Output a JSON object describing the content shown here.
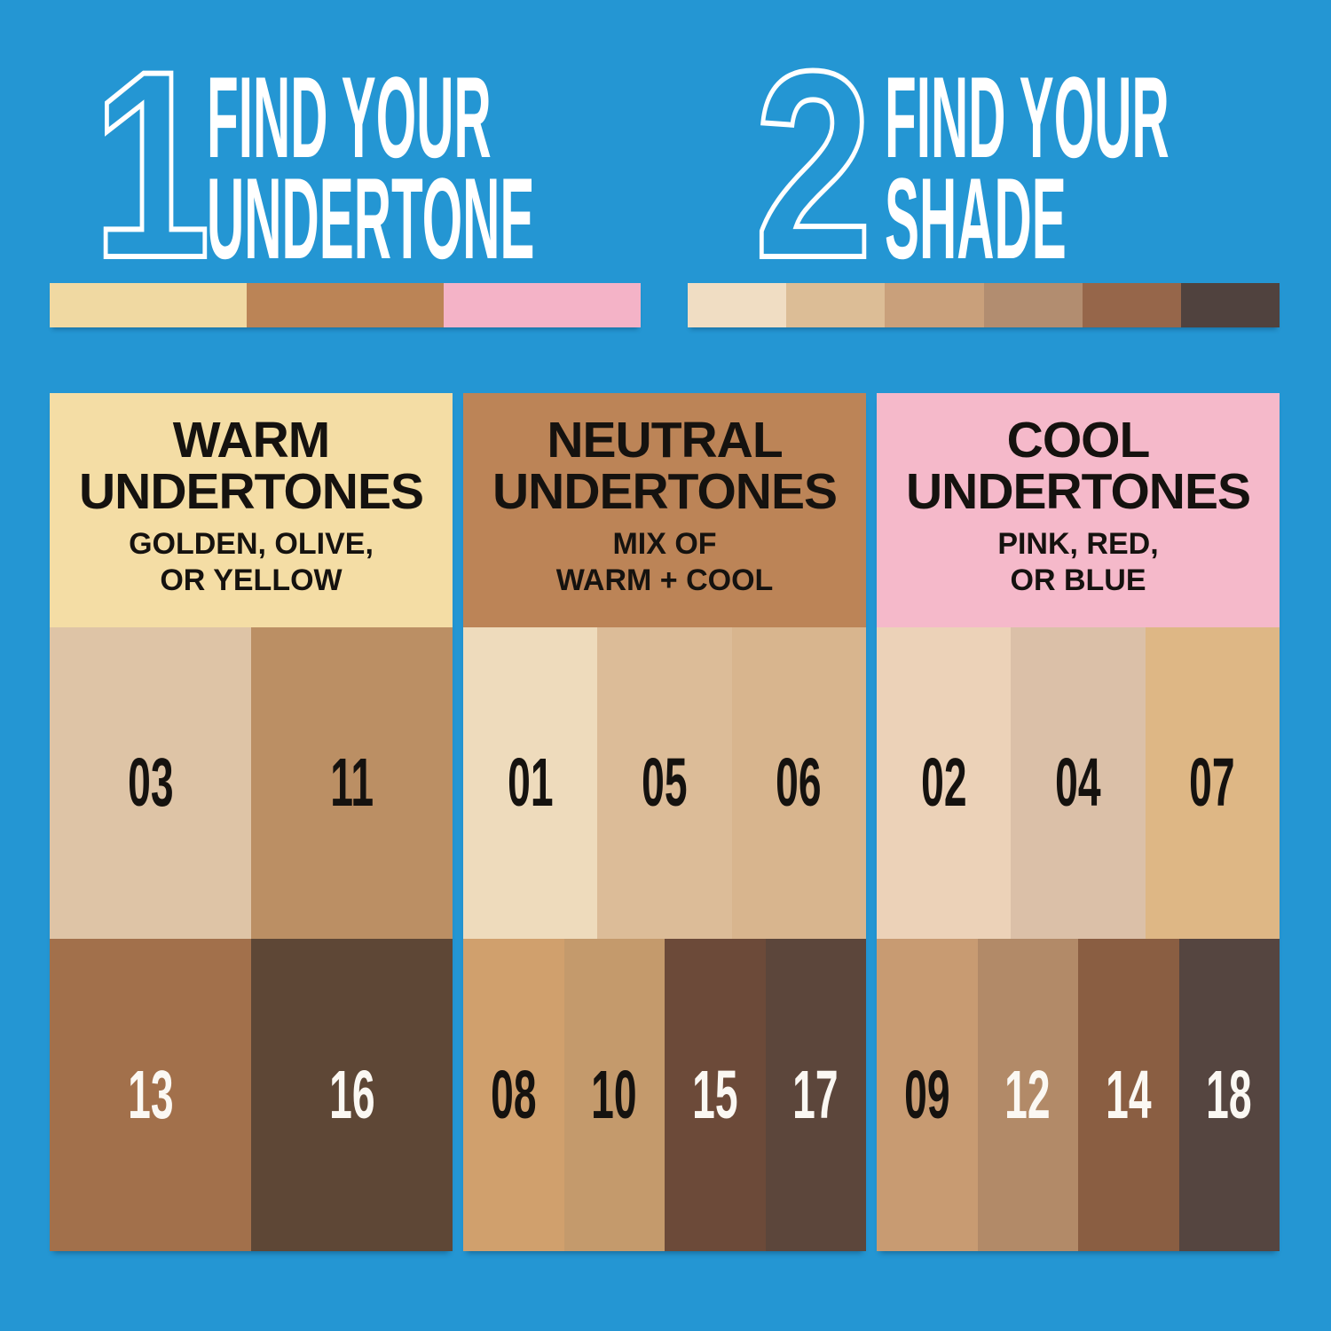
{
  "page": {
    "background": "#2496d3"
  },
  "steps": [
    {
      "number": "1",
      "title_line1": "FIND YOUR",
      "title_line2": "UNDERTONE",
      "strip": [
        "#f0d9a2",
        "#bb8456",
        "#f4b3c7"
      ]
    },
    {
      "number": "2",
      "title_line1": "FIND YOUR",
      "title_line2": "SHADE",
      "strip": [
        "#f0ddc3",
        "#dcbd96",
        "#c9a07b",
        "#b28d70",
        "#96664a",
        "#50423e"
      ]
    }
  ],
  "columns": [
    {
      "header": {
        "bg": "#f4dda5",
        "title_line1": "WARM",
        "title_line2": "UNDERTONES",
        "subtitle_line1": "GOLDEN, OLIVE,",
        "subtitle_line2": "OR YELLOW"
      },
      "light_row": [
        {
          "label": "03",
          "bg": "#dec4a6",
          "label_color": "#15120f"
        },
        {
          "label": "11",
          "bg": "#bb8f64",
          "label_color": "#15120f"
        }
      ],
      "dark_row": [
        {
          "label": "13",
          "bg": "#a2704b",
          "label_color": "#fbf8f3"
        },
        {
          "label": "16",
          "bg": "#5e4736",
          "label_color": "#fbf8f3"
        }
      ]
    },
    {
      "header": {
        "bg": "#bc8457",
        "title_line1": "NEUTRAL",
        "title_line2": "UNDERTONES",
        "subtitle_line1": "MIX OF",
        "subtitle_line2": "WARM + COOL"
      },
      "light_row": [
        {
          "label": "01",
          "bg": "#eedbbc",
          "label_color": "#15120f"
        },
        {
          "label": "05",
          "bg": "#dcbc98",
          "label_color": "#15120f"
        },
        {
          "label": "06",
          "bg": "#d8b58e",
          "label_color": "#15120f"
        }
      ],
      "dark_row": [
        {
          "label": "08",
          "bg": "#d0a06d",
          "label_color": "#15120f"
        },
        {
          "label": "10",
          "bg": "#c49a6c",
          "label_color": "#15120f"
        },
        {
          "label": "15",
          "bg": "#6c4a39",
          "label_color": "#fbf8f3"
        },
        {
          "label": "17",
          "bg": "#5c463b",
          "label_color": "#fbf8f3"
        }
      ]
    },
    {
      "header": {
        "bg": "#f5b9ca",
        "title_line1": "COOL",
        "title_line2": "UNDERTONES",
        "subtitle_line1": "PINK, RED,",
        "subtitle_line2": "OR BLUE"
      },
      "light_row": [
        {
          "label": "02",
          "bg": "#ecd2b8",
          "label_color": "#15120f"
        },
        {
          "label": "04",
          "bg": "#dbc0a8",
          "label_color": "#15120f"
        },
        {
          "label": "07",
          "bg": "#deb785",
          "label_color": "#15120f"
        }
      ],
      "dark_row": [
        {
          "label": "09",
          "bg": "#c89b72",
          "label_color": "#15120f"
        },
        {
          "label": "12",
          "bg": "#b28a68",
          "label_color": "#fbf8f3"
        },
        {
          "label": "14",
          "bg": "#8a5e42",
          "label_color": "#fbf8f3"
        },
        {
          "label": "18",
          "bg": "#554540",
          "label_color": "#fbf8f3"
        }
      ]
    }
  ]
}
